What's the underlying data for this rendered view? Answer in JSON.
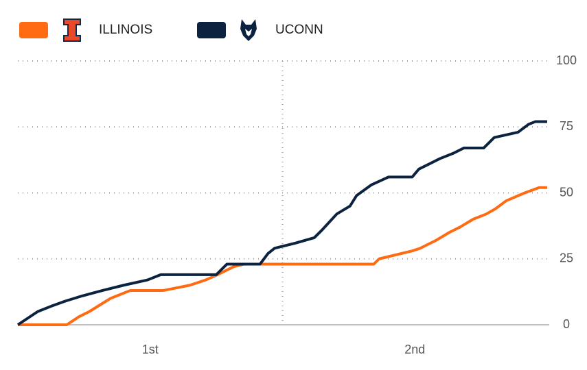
{
  "chart_data": {
    "type": "line",
    "xlim": [
      0,
      40
    ],
    "ylim": [
      0,
      100
    ],
    "yticks": [
      0,
      25,
      50,
      75,
      100
    ],
    "xticks": [
      {
        "value": 10,
        "label": "1st"
      },
      {
        "value": 30,
        "label": "2nd"
      }
    ],
    "period_breaks": [
      20
    ],
    "grid": true,
    "series": [
      {
        "name": "ILLINOIS",
        "color": "#ff6b13",
        "x": [
          0,
          3.7,
          4.6,
          5.4,
          7.0,
          8.5,
          11,
          13,
          14.2,
          15.1,
          16.3,
          17.1,
          26.9,
          27.3,
          29.8,
          30.4,
          30.8,
          31.6,
          32.6,
          33.4,
          34.4,
          35.4,
          36.1,
          36.9,
          38.3,
          39.4,
          40
        ],
        "values": [
          0,
          0,
          3,
          5,
          10,
          13,
          13,
          15,
          17,
          19,
          22,
          23,
          23,
          25,
          28,
          29,
          30,
          32,
          35,
          37,
          40,
          42,
          44,
          47,
          50,
          52,
          52
        ]
      },
      {
        "name": "UCONN",
        "color": "#0c2340",
        "x": [
          0,
          1.5,
          2.5,
          3.6,
          4.9,
          6.4,
          8.0,
          9.8,
          10.8,
          15.0,
          15.8,
          18.3,
          18.9,
          19.4,
          21.0,
          22.4,
          23.0,
          24.1,
          25.1,
          25.6,
          26.7,
          28.0,
          29.8,
          30.3,
          31.1,
          31.9,
          32.9,
          33.7,
          35.2,
          36.0,
          37.8,
          38.6,
          39.1,
          40
        ],
        "values": [
          0,
          5,
          7,
          9,
          11,
          13,
          15,
          17,
          19,
          19,
          23,
          23,
          27,
          29,
          31,
          33,
          36,
          42,
          45,
          49,
          53,
          56,
          56,
          59,
          61,
          63,
          65,
          67,
          67,
          71,
          73,
          76,
          77,
          77
        ]
      }
    ]
  }
}
